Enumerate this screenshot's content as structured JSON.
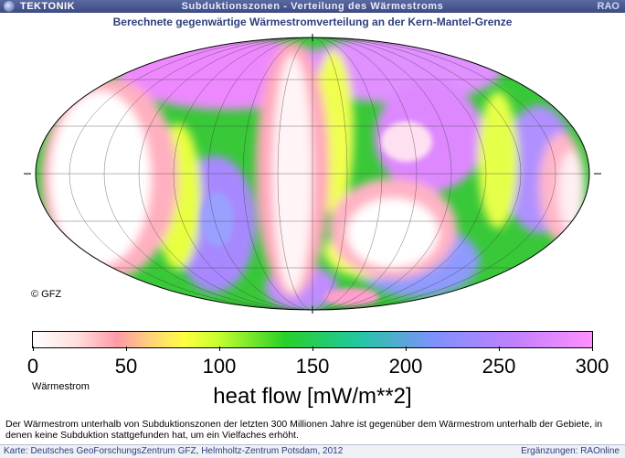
{
  "header": {
    "brand": "TEKTONIK",
    "title": "Subduktionszonen - Verteilung des Wärmestroms",
    "corner": "RAO"
  },
  "map": {
    "subtitle": "Berechnete gegenwärtige Wärmestromverteilung an der Kern-Mantel-Grenze",
    "copyright": "© GFZ",
    "projection": "mollweide"
  },
  "legend": {
    "ticks": [
      "0",
      "50",
      "100",
      "150",
      "200",
      "250",
      "300"
    ],
    "min": 0,
    "max": 300,
    "quantity_label": "Wärmestrom",
    "unit_label": "heat flow [mW/m**2]",
    "colors": {
      "low": "#ffffff",
      "pink": "#ff9aa8",
      "yellow": "#ffff40",
      "green": "#28d028",
      "blue": "#8090ff",
      "high": "#ff90ff"
    }
  },
  "description": "Der Wärmestrom unterhalb von Subduktionszonen der letzten 300 Millionen Jahre ist gegenüber dem Wärmestrom unterhalb der Gebiete, in denen keine Subduktion stattgefunden hat, um ein Vielfaches erhöht.",
  "footer": {
    "source": "Karte: Deutsches GeoForschungsZentrum GFZ, Helmholtz-Zentrum Potsdam, 2012",
    "credit": "Ergänzungen: RAOnline"
  }
}
